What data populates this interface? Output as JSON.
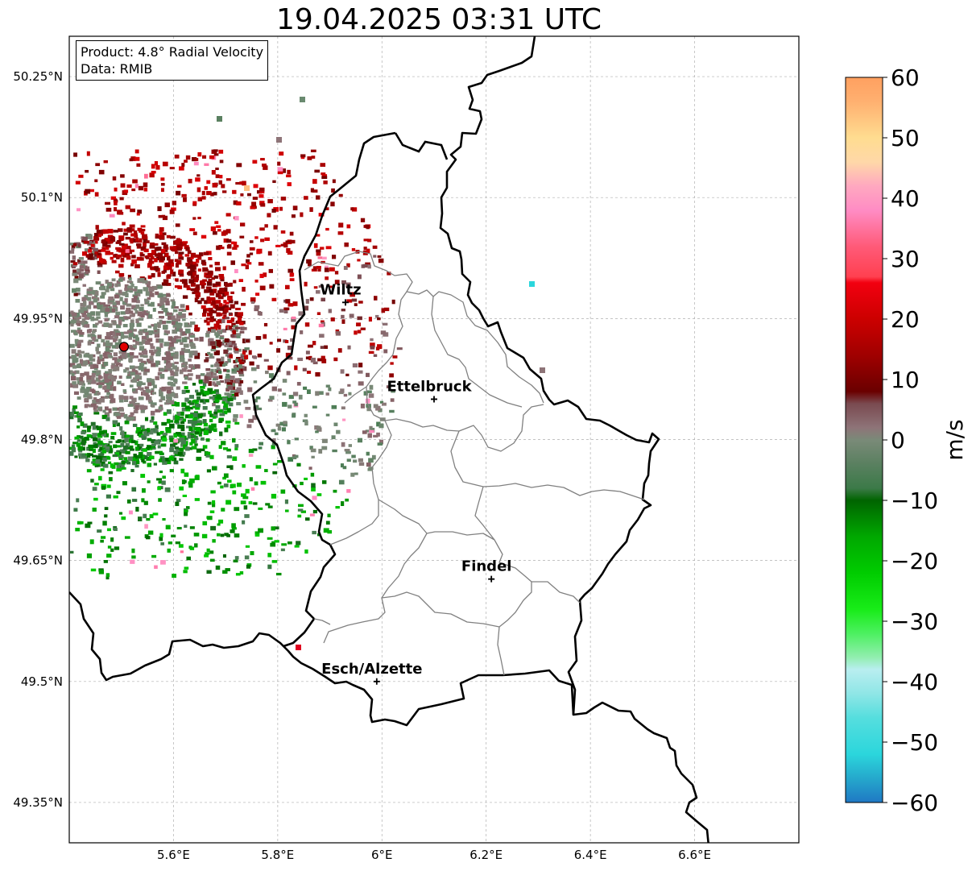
{
  "title": "19.04.2025 03:31 UTC",
  "info": {
    "product": "Product: 4.8° Radial Velocity",
    "source": "Data: RMIB"
  },
  "axes": {
    "lon_ticks": [
      {
        "value": 5.6,
        "label": "5.6°E"
      },
      {
        "value": 5.8,
        "label": "5.8°E"
      },
      {
        "value": 6.0,
        "label": "6°E"
      },
      {
        "value": 6.2,
        "label": "6.2°E"
      },
      {
        "value": 6.4,
        "label": "6.4°E"
      },
      {
        "value": 6.6,
        "label": "6.6°E"
      }
    ],
    "lat_ticks": [
      {
        "value": 50.25,
        "label": "50.25°N"
      },
      {
        "value": 50.1,
        "label": "50.1°N"
      },
      {
        "value": 49.95,
        "label": "49.95°N"
      },
      {
        "value": 49.8,
        "label": "49.8°N"
      },
      {
        "value": 49.65,
        "label": "49.65°N"
      },
      {
        "value": 49.5,
        "label": "49.5°N"
      },
      {
        "value": 49.35,
        "label": "49.35°N"
      }
    ],
    "lon_range": [
      5.4,
      6.8
    ],
    "lat_range": [
      49.3,
      50.3
    ],
    "grid": true
  },
  "cities": [
    {
      "name": "Wiltz",
      "lon": 5.93,
      "lat": 49.97
    },
    {
      "name": "Ettelbruck",
      "lon": 6.1,
      "lat": 49.85
    },
    {
      "name": "Findel",
      "lon": 6.21,
      "lat": 49.627
    },
    {
      "name": "Esch/Alzette",
      "lon": 5.99,
      "lat": 49.5
    }
  ],
  "radar_site": {
    "lon": 5.505,
    "lat": 49.915,
    "color": "#e00000"
  },
  "colorbar": {
    "unit": "m/s",
    "range": [
      -60,
      60
    ],
    "ticks": [
      {
        "value": 60,
        "label": "60"
      },
      {
        "value": 50,
        "label": "50"
      },
      {
        "value": 40,
        "label": "40"
      },
      {
        "value": 30,
        "label": "30"
      },
      {
        "value": 20,
        "label": "20"
      },
      {
        "value": 10,
        "label": "10"
      },
      {
        "value": 0,
        "label": "0"
      },
      {
        "value": -10,
        "label": "−10"
      },
      {
        "value": -20,
        "label": "−20"
      },
      {
        "value": -30,
        "label": "−30"
      },
      {
        "value": -40,
        "label": "−40"
      },
      {
        "value": -50,
        "label": "−50"
      },
      {
        "value": -60,
        "label": "−60"
      }
    ],
    "stops": [
      {
        "v": -60,
        "c": "#1f78c4"
      },
      {
        "v": -56,
        "c": "#25a8cc"
      },
      {
        "v": -52,
        "c": "#2bd6dc"
      },
      {
        "v": -46,
        "c": "#55dede"
      },
      {
        "v": -42,
        "c": "#8fe6e6"
      },
      {
        "v": -38,
        "c": "#b9eef0"
      },
      {
        "v": -36,
        "c": "#92eeb0"
      },
      {
        "v": -32,
        "c": "#4cf060"
      },
      {
        "v": -28,
        "c": "#18ec18"
      },
      {
        "v": -22,
        "c": "#00cc00"
      },
      {
        "v": -16,
        "c": "#00a800"
      },
      {
        "v": -10,
        "c": "#006400"
      },
      {
        "v": -8,
        "c": "#3c7a48"
      },
      {
        "v": -4,
        "c": "#5a8060"
      },
      {
        "v": 0,
        "c": "#7a8a78"
      },
      {
        "v": 2,
        "c": "#8e7478"
      },
      {
        "v": 6,
        "c": "#7a4a50"
      },
      {
        "v": 8,
        "c": "#6a0000"
      },
      {
        "v": 14,
        "c": "#a00000"
      },
      {
        "v": 20,
        "c": "#cc0000"
      },
      {
        "v": 26,
        "c": "#f20010"
      },
      {
        "v": 27,
        "c": "#ff4050"
      },
      {
        "v": 32,
        "c": "#ff5a78"
      },
      {
        "v": 38,
        "c": "#ff8cc4"
      },
      {
        "v": 42,
        "c": "#ffa8c0"
      },
      {
        "v": 46,
        "c": "#ffd8a8"
      },
      {
        "v": 50,
        "c": "#ffdc90"
      },
      {
        "v": 56,
        "c": "#ffb070"
      },
      {
        "v": 60,
        "c": "#ffa060"
      }
    ]
  }
}
